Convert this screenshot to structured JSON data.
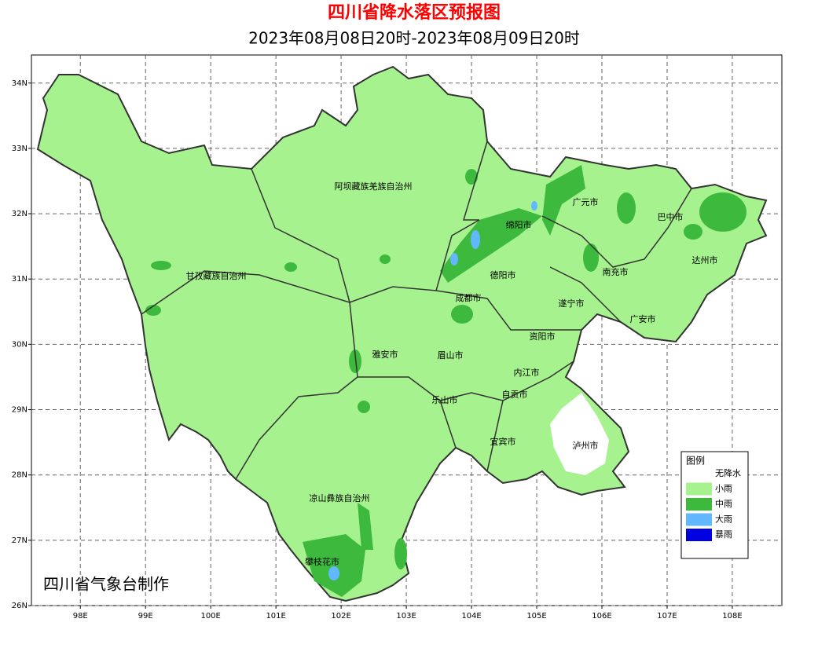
{
  "header": {
    "title": "四川省降水落区预报图",
    "subtitle": "2023年08月08日20时-2023年08月09日20时"
  },
  "map": {
    "xlim": [
      97.25,
      108.76
    ],
    "ylim": [
      26,
      34.43
    ],
    "xticks": [
      {
        "value": 98,
        "label": "98E"
      },
      {
        "value": 99,
        "label": "99E"
      },
      {
        "value": 100,
        "label": "100E"
      },
      {
        "value": 101,
        "label": "101E"
      },
      {
        "value": 102,
        "label": "102E"
      },
      {
        "value": 103,
        "label": "103E"
      },
      {
        "value": 104,
        "label": "104E"
      },
      {
        "value": 105,
        "label": "105E"
      },
      {
        "value": 106,
        "label": "106E"
      },
      {
        "value": 107,
        "label": "107E"
      },
      {
        "value": 108,
        "label": "108E"
      }
    ],
    "yticks": [
      {
        "value": 26,
        "label": "26N"
      },
      {
        "value": 27,
        "label": "27N"
      },
      {
        "value": 28,
        "label": "28N"
      },
      {
        "value": 29,
        "label": "29N"
      },
      {
        "value": 30,
        "label": "30N"
      },
      {
        "value": 31,
        "label": "31N"
      },
      {
        "value": 32,
        "label": "32N"
      },
      {
        "value": 33,
        "label": "33N"
      },
      {
        "value": 34,
        "label": "34N"
      }
    ],
    "grid": true
  },
  "cities": [
    "阿坝藏族羌族自治州",
    "甘孜藏族自治州",
    "广元市",
    "巴中市",
    "绵阳市",
    "达州市",
    "德阳市",
    "南充市",
    "成都市",
    "遂宁市",
    "广安市",
    "资阳市",
    "雅安市",
    "眉山市",
    "内江市",
    "自贡市",
    "乐山市",
    "宜宾市",
    "泸州市",
    "凉山彝族自治州",
    "攀枝花市"
  ],
  "legend": {
    "title": "图例",
    "items": [
      {
        "label": "无降水",
        "color": "#ffffff"
      },
      {
        "label": "小雨",
        "color": "#a6f28f"
      },
      {
        "label": "中雨",
        "color": "#3dba3d"
      },
      {
        "label": "大雨",
        "color": "#61b8ff"
      },
      {
        "label": "暴雨",
        "color": "#0000e1"
      }
    ]
  },
  "credit": "四川省气象台制作"
}
